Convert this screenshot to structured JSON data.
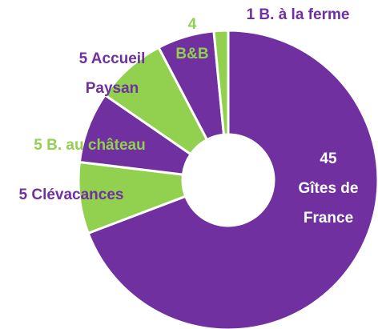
{
  "chart_data": {
    "type": "donut",
    "categories": [
      "Gîtes de France",
      "Clévacances",
      "B. au château",
      "Accueil Paysan",
      "B&B",
      "B. à la ferme"
    ],
    "values": [
      45,
      5,
      5,
      5,
      4,
      1
    ],
    "colors": [
      "#7030a0",
      "#92d050",
      "#7030a0",
      "#92d050",
      "#7030a0",
      "#92d050"
    ],
    "label_colors": [
      "#ffffff",
      "#7030a0",
      "#92d050",
      "#7030a0",
      "#92d050",
      "#7030a0"
    ]
  }
}
